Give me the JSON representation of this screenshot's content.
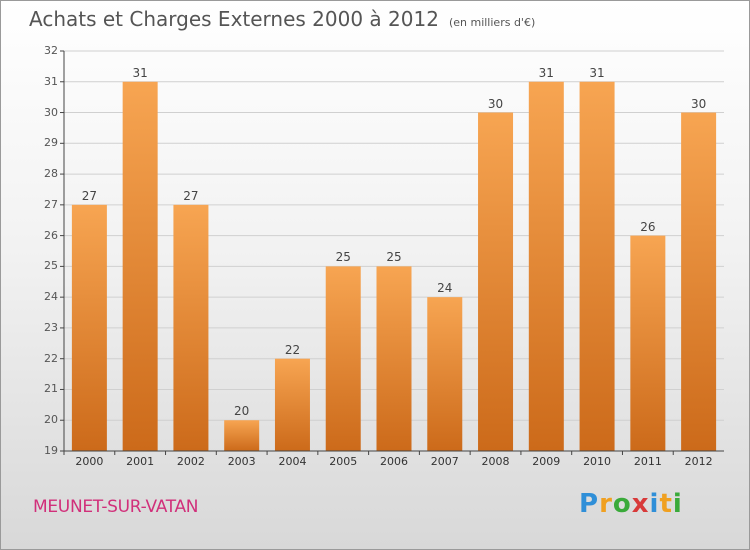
{
  "header": {
    "title": "Achats et Charges Externes 2000 à 2012",
    "subtitle": "(en milliers d'€)"
  },
  "footer": {
    "city": "MEUNET-SUR-VATAN",
    "logo": "Proxiti"
  },
  "colors": {
    "bar_top": "#f7a552",
    "bar_bottom": "#cc6a1a",
    "axis": "#444444",
    "grid": "#d0d0d0"
  },
  "chart_data": {
    "type": "bar",
    "title": "Achats et Charges Externes 2000 à 2012",
    "subtitle": "(en milliers d'€)",
    "xlabel": "",
    "ylabel": "",
    "categories": [
      "2000",
      "2001",
      "2002",
      "2003",
      "2004",
      "2005",
      "2006",
      "2007",
      "2008",
      "2009",
      "2010",
      "2011",
      "2012"
    ],
    "values": [
      27,
      31,
      27,
      20,
      22,
      25,
      25,
      24,
      30,
      31,
      31,
      26,
      30
    ],
    "ylim": [
      19,
      32
    ],
    "yticks": [
      "19",
      "20",
      "21",
      "22",
      "23",
      "24",
      "25",
      "26",
      "27",
      "28",
      "29",
      "30",
      "31",
      "32"
    ],
    "grid": true,
    "legend": "none"
  }
}
